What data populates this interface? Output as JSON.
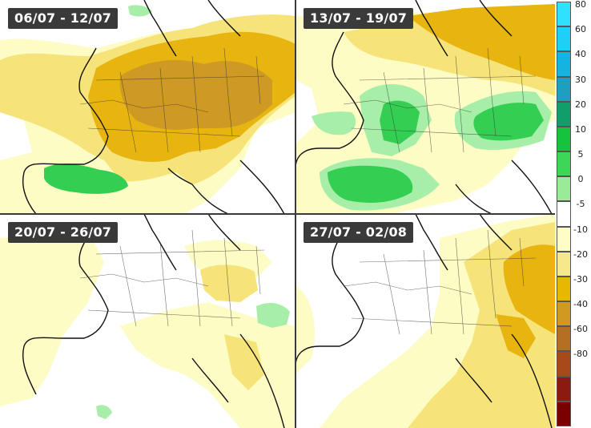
{
  "panels": [
    {
      "title": "06/07 - 12/07"
    },
    {
      "title": "13/07 - 19/07"
    },
    {
      "title": "20/07 - 26/07"
    },
    {
      "title": "27/07 - 02/08"
    }
  ],
  "colorbar": {
    "levels": [
      {
        "label": "80",
        "color": "#2fe0ff"
      },
      {
        "label": "60",
        "color": "#1ed0f5"
      },
      {
        "label": "40",
        "color": "#15b3e0"
      },
      {
        "label": "30",
        "color": "#1f9fbf"
      },
      {
        "label": "20",
        "color": "#119e6a"
      },
      {
        "label": "10",
        "color": "#14c43c"
      },
      {
        "label": "5",
        "color": "#3ed656"
      },
      {
        "label": "0",
        "color": "#9aea98"
      },
      {
        "label": "-5",
        "color": "#ffffff"
      },
      {
        "label": "-10",
        "color": "#fdfdc8"
      },
      {
        "label": "-20",
        "color": "#f5e98a"
      },
      {
        "label": "-30",
        "color": "#e6b800"
      },
      {
        "label": "-40",
        "color": "#d09a20"
      },
      {
        "label": "-60",
        "color": "#b56f22"
      },
      {
        "label": "-80",
        "color": "#a84a18"
      },
      {
        "label": "",
        "color": "#8b1a10"
      },
      {
        "label": "",
        "color": "#7a0000"
      }
    ]
  },
  "colors": {
    "land_outline": "#111111",
    "border": "#222222",
    "pale_yellow": "#fdfcc4",
    "yellow": "#f6e47a",
    "gold": "#e7b410",
    "dark_gold": "#cf9a23",
    "light_green": "#a7eea8",
    "green": "#34cf52",
    "dark_green": "#14bf30"
  }
}
